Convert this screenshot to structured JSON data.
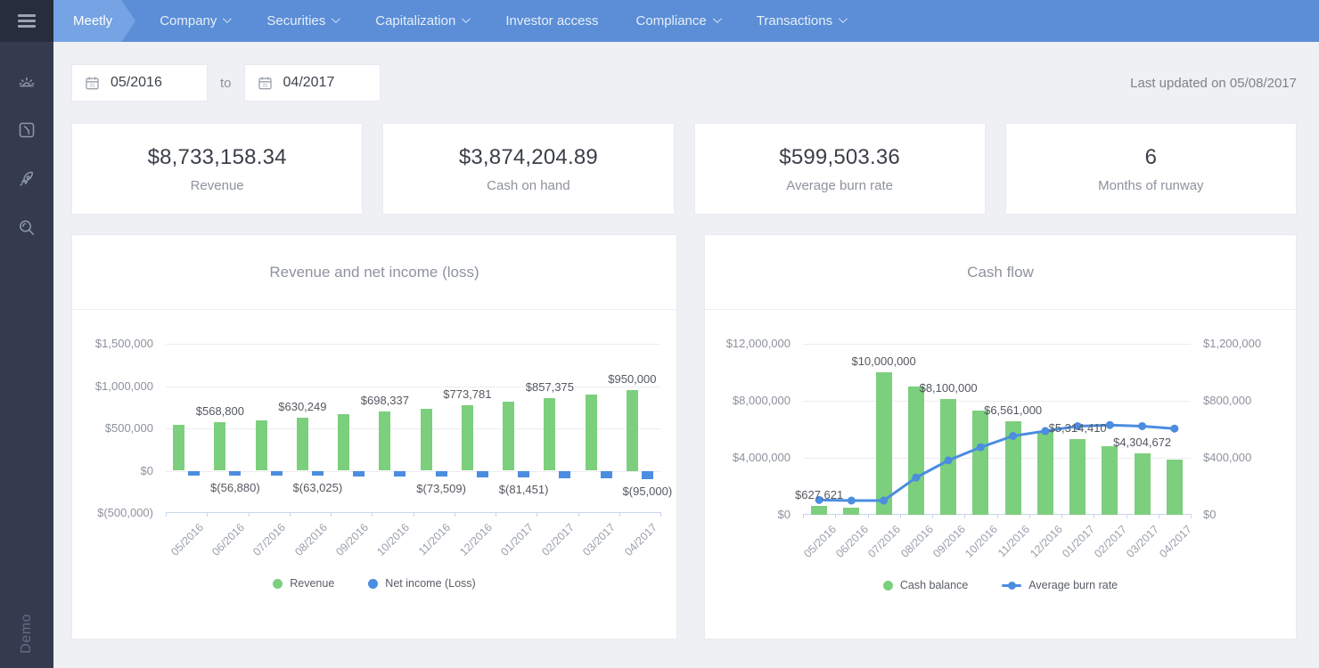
{
  "nav": {
    "brand": "Meetly",
    "items": [
      {
        "label": "Company",
        "caret": true
      },
      {
        "label": "Securities",
        "caret": true
      },
      {
        "label": "Capitalization",
        "caret": true
      },
      {
        "label": "Investor access",
        "caret": false
      },
      {
        "label": "Compliance",
        "caret": true
      },
      {
        "label": "Transactions",
        "caret": true
      }
    ]
  },
  "sidebar": {
    "icons": [
      "sunrise-icon",
      "document-icon",
      "rocket-icon",
      "search-icon"
    ],
    "footer_label": "Demo"
  },
  "toolbar": {
    "date_from": "05/2016",
    "to_label": "to",
    "date_to": "04/2017",
    "last_updated": "Last updated on 05/08/2017"
  },
  "stats": [
    {
      "value": "$8,733,158.34",
      "label": "Revenue"
    },
    {
      "value": "$3,874,204.89",
      "label": "Cash on hand"
    },
    {
      "value": "$599,503.36",
      "label": "Average burn rate"
    },
    {
      "value": "6",
      "label": "Months of runway"
    }
  ],
  "colors": {
    "green": "#7ccf7d",
    "blue": "#4b8de0",
    "nav_blue": "#5b8ed7",
    "brand_tab_blue": "#75a3e3",
    "sidebar_bg": "#353b4f"
  },
  "chart_data": [
    {
      "type": "bar",
      "title": "Revenue and net income (loss)",
      "categories": [
        "05/2016",
        "06/2016",
        "07/2016",
        "08/2016",
        "09/2016",
        "10/2016",
        "11/2016",
        "12/2016",
        "01/2017",
        "02/2017",
        "03/2017",
        "04/2017"
      ],
      "series": [
        {
          "name": "Revenue",
          "kind": "bar",
          "color": "#7ccf7d",
          "values": [
            540000,
            568800,
            599000,
            630249,
            663500,
            698337,
            735090,
            773781,
            814510,
            857375,
            902500,
            950000
          ]
        },
        {
          "name": "Net income (Loss)",
          "kind": "bar",
          "color": "#4b8de0",
          "values": [
            -54000,
            -56880,
            -59900,
            -63025,
            -66350,
            -69834,
            -73509,
            -77378,
            -81451,
            -85738,
            -90250,
            -95000
          ]
        }
      ],
      "y_axis": {
        "min": -500000,
        "max": 1500000,
        "ticks": [
          {
            "value": 1500000,
            "label": "$1,500,000"
          },
          {
            "value": 1000000,
            "label": "$1,000,000"
          },
          {
            "value": 500000,
            "label": "$500,000"
          },
          {
            "value": 0,
            "label": "$0"
          },
          {
            "value": -500000,
            "label": "$(500,000)"
          }
        ]
      },
      "value_labels": [
        {
          "series": 0,
          "position": "above",
          "items": [
            {
              "index": 1,
              "text": "$568,800"
            },
            {
              "index": 3,
              "text": "$630,249"
            },
            {
              "index": 5,
              "text": "$698,337"
            },
            {
              "index": 7,
              "text": "$773,781"
            },
            {
              "index": 9,
              "text": "$857,375"
            },
            {
              "index": 11,
              "text": "$950,000"
            }
          ]
        },
        {
          "series": 1,
          "position": "below",
          "items": [
            {
              "index": 1,
              "text": "$(56,880)"
            },
            {
              "index": 3,
              "text": "$(63,025)"
            },
            {
              "index": 6,
              "text": "$(73,509)"
            },
            {
              "index": 8,
              "text": "$(81,451)"
            },
            {
              "index": 11,
              "text": "$(95,000)"
            }
          ]
        }
      ],
      "legend": [
        {
          "label": "Revenue",
          "marker": "dot",
          "color": "#7ccf7d"
        },
        {
          "label": "Net income (Loss)",
          "marker": "dot",
          "color": "#4b8de0"
        }
      ],
      "grid": true,
      "legend_position": "bottom"
    },
    {
      "type": "bar+line",
      "title": "Cash flow",
      "categories": [
        "05/2016",
        "06/2016",
        "07/2016",
        "08/2016",
        "09/2016",
        "10/2016",
        "11/2016",
        "12/2016",
        "01/2017",
        "02/2017",
        "03/2017",
        "04/2017"
      ],
      "series": [
        {
          "name": "Cash balance",
          "kind": "bar",
          "axis": "left",
          "color": "#7ccf7d",
          "values": [
            627621,
            520000,
            10000000,
            9000000,
            8100000,
            7290000,
            6561000,
            5904900,
            5314410,
            4782969,
            4304672,
            3874205
          ]
        },
        {
          "name": "Average burn rate",
          "kind": "line",
          "axis": "right",
          "color": "#4b8de0",
          "values": [
            104000,
            100000,
            100000,
            261000,
            382000,
            474000,
            553000,
            588000,
            622000,
            630000,
            622000,
            605000
          ]
        }
      ],
      "y_axis": {
        "min": 0,
        "max": 12000000,
        "ticks": [
          {
            "value": 12000000,
            "label": "$12,000,000"
          },
          {
            "value": 8000000,
            "label": "$8,000,000"
          },
          {
            "value": 4000000,
            "label": "$4,000,000"
          },
          {
            "value": 0,
            "label": "$0"
          }
        ]
      },
      "y_axis_right": {
        "min": 0,
        "max": 1200000,
        "ticks": [
          {
            "value": 1200000,
            "label": "$1,200,000"
          },
          {
            "value": 800000,
            "label": "$800,000"
          },
          {
            "value": 400000,
            "label": "$400,000"
          },
          {
            "value": 0,
            "label": "$0"
          }
        ]
      },
      "value_labels": [
        {
          "series": 0,
          "position": "above",
          "items": [
            {
              "index": 0,
              "text": "$627,621"
            },
            {
              "index": 2,
              "text": "$10,000,000"
            },
            {
              "index": 4,
              "text": "$8,100,000"
            },
            {
              "index": 6,
              "text": "$6,561,000"
            },
            {
              "index": 8,
              "text": "$5,314,410"
            },
            {
              "index": 10,
              "text": "$4,304,672"
            }
          ]
        }
      ],
      "legend": [
        {
          "label": "Cash balance",
          "marker": "dot",
          "color": "#7ccf7d"
        },
        {
          "label": "Average burn rate",
          "marker": "line-dot",
          "color": "#4b8de0"
        }
      ],
      "grid": true,
      "legend_position": "bottom"
    }
  ]
}
